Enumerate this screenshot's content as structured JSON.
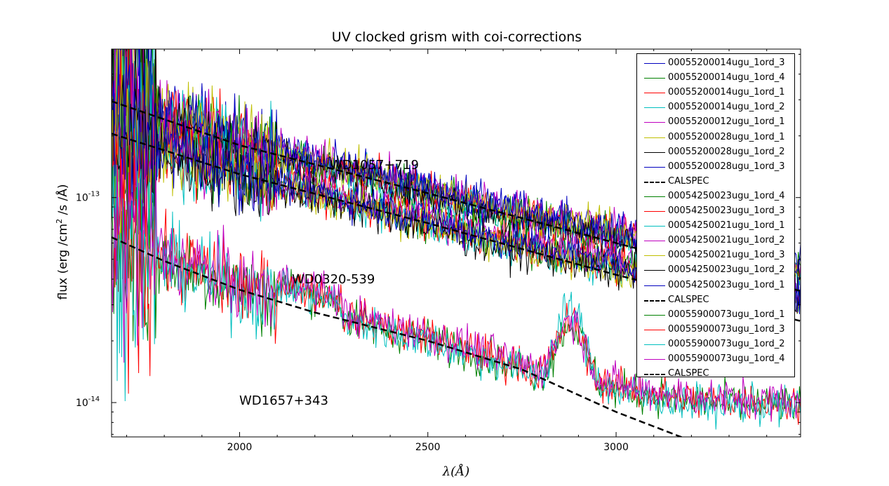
{
  "chart_data": {
    "type": "line",
    "title": "UV clocked grism with coi-corrections",
    "xlabel": "λ(Å)",
    "ylabel_text": "flux (erg /cm",
    "ylabel_sup": "2",
    "ylabel_rest": " /s /Å)",
    "xlim": [
      1660,
      3490
    ],
    "ylim": [
      6.8e-15,
      5.3e-13
    ],
    "yscale": "log",
    "x_ticks": [
      "2000",
      "2500",
      "3000"
    ],
    "y_ticks": [
      {
        "base": "10",
        "exp": "-13"
      },
      {
        "base": "10",
        "exp": "-14"
      }
    ],
    "annotations": [
      "WD1057+719",
      "WD0320-539",
      "WD1657+343"
    ],
    "legend_position": "upper right",
    "targets": [
      {
        "name": "WD1057+719",
        "calspec": {
          "x": [
            1660,
            2000,
            2500,
            3000,
            3490
          ],
          "y": [
            2.95e-13,
            1.8e-13,
            1.05e-13,
            6e-14,
            3.5e-14
          ]
        },
        "series": [
          {
            "name": "00055200014ugu_1ord_3",
            "color": "#0000bf",
            "factor": 1.06
          },
          {
            "name": "00055200014ugu_1ord_4",
            "color": "#008000",
            "factor": 1.02
          },
          {
            "name": "00055200014ugu_1ord_1",
            "color": "#ff0000",
            "factor": 1.0
          },
          {
            "name": "00055200014ugu_1ord_2",
            "color": "#00bfbf",
            "factor": 0.98
          },
          {
            "name": "00055200012ugu_1ord_1",
            "color": "#bf00bf",
            "factor": 1.08
          },
          {
            "name": "00055200028ugu_1ord_1",
            "color": "#bfbf00",
            "factor": 1.03
          },
          {
            "name": "00055200028ugu_1ord_2",
            "color": "#000000",
            "factor": 0.97
          },
          {
            "name": "00055200028ugu_1ord_3",
            "color": "#0000bf",
            "factor": 1.05
          }
        ]
      },
      {
        "name": "WD0320-539",
        "calspec": {
          "x": [
            1660,
            2000,
            2500,
            3000,
            3490
          ],
          "y": [
            2.05e-13,
            1.3e-13,
            7.5e-14,
            4.2e-14,
            2.5e-14
          ]
        },
        "series": [
          {
            "name": "00054250023ugu_1ord_4",
            "color": "#008000",
            "factor": 1.05
          },
          {
            "name": "00054250023ugu_1ord_3",
            "color": "#ff0000",
            "factor": 1.02
          },
          {
            "name": "00054250021ugu_1ord_1",
            "color": "#00bfbf",
            "factor": 1.0
          },
          {
            "name": "00054250021ugu_1ord_2",
            "color": "#bf00bf",
            "factor": 1.07
          },
          {
            "name": "00054250021ugu_1ord_3",
            "color": "#bfbf00",
            "factor": 0.98
          },
          {
            "name": "00054250023ugu_1ord_2",
            "color": "#000000",
            "factor": 0.96
          },
          {
            "name": "00054250023ugu_1ord_1",
            "color": "#0000bf",
            "factor": 1.04
          }
        ]
      },
      {
        "name": "WD1657+343",
        "calspec": {
          "x": [
            1660,
            1800,
            2000,
            2200,
            2500,
            2750,
            3000,
            3200,
            3490
          ],
          "y": [
            6.4e-14,
            4.9e-14,
            3.55e-14,
            2.75e-14,
            2e-14,
            1.45e-14,
            9e-15,
            6.5e-15,
            5e-15
          ]
        },
        "series": [
          {
            "name": "00055900073ugu_1ord_1",
            "color": "#008000",
            "factor": 1.02
          },
          {
            "name": "00055900073ugu_1ord_3",
            "color": "#ff0000",
            "factor": 1.05
          },
          {
            "name": "00055900073ugu_1ord_2",
            "color": "#00bfbf",
            "factor": 1.0
          },
          {
            "name": "00055900073ugu_1ord_4",
            "color": "#bf00bf",
            "factor": 1.08
          }
        ]
      }
    ],
    "legend": [
      {
        "label": "00055200014ugu_1ord_3",
        "color": "#0000bf",
        "style": "solid"
      },
      {
        "label": "00055200014ugu_1ord_4",
        "color": "#008000",
        "style": "solid"
      },
      {
        "label": "00055200014ugu_1ord_1",
        "color": "#ff0000",
        "style": "solid"
      },
      {
        "label": "00055200014ugu_1ord_2",
        "color": "#00bfbf",
        "style": "solid"
      },
      {
        "label": "00055200012ugu_1ord_1",
        "color": "#bf00bf",
        "style": "solid"
      },
      {
        "label": "00055200028ugu_1ord_1",
        "color": "#bfbf00",
        "style": "solid"
      },
      {
        "label": "00055200028ugu_1ord_2",
        "color": "#000000",
        "style": "solid"
      },
      {
        "label": "00055200028ugu_1ord_3",
        "color": "#0000bf",
        "style": "solid"
      },
      {
        "label": "CALSPEC",
        "color": "#000000",
        "style": "dashed"
      },
      {
        "label": "00054250023ugu_1ord_4",
        "color": "#008000",
        "style": "solid"
      },
      {
        "label": "00054250023ugu_1ord_3",
        "color": "#ff0000",
        "style": "solid"
      },
      {
        "label": "00054250021ugu_1ord_1",
        "color": "#00bfbf",
        "style": "solid"
      },
      {
        "label": "00054250021ugu_1ord_2",
        "color": "#bf00bf",
        "style": "solid"
      },
      {
        "label": "00054250021ugu_1ord_3",
        "color": "#bfbf00",
        "style": "solid"
      },
      {
        "label": "00054250023ugu_1ord_2",
        "color": "#000000",
        "style": "solid"
      },
      {
        "label": "00054250023ugu_1ord_1",
        "color": "#0000bf",
        "style": "solid"
      },
      {
        "label": "CALSPEC",
        "color": "#000000",
        "style": "dashed"
      },
      {
        "label": "00055900073ugu_1ord_1",
        "color": "#008000",
        "style": "solid"
      },
      {
        "label": "00055900073ugu_1ord_3",
        "color": "#ff0000",
        "style": "solid"
      },
      {
        "label": "00055900073ugu_1ord_2",
        "color": "#00bfbf",
        "style": "solid"
      },
      {
        "label": "00055900073ugu_1ord_4",
        "color": "#bf00bf",
        "style": "solid"
      },
      {
        "label": "CALSPEC",
        "color": "#000000",
        "style": "dashed"
      }
    ]
  }
}
